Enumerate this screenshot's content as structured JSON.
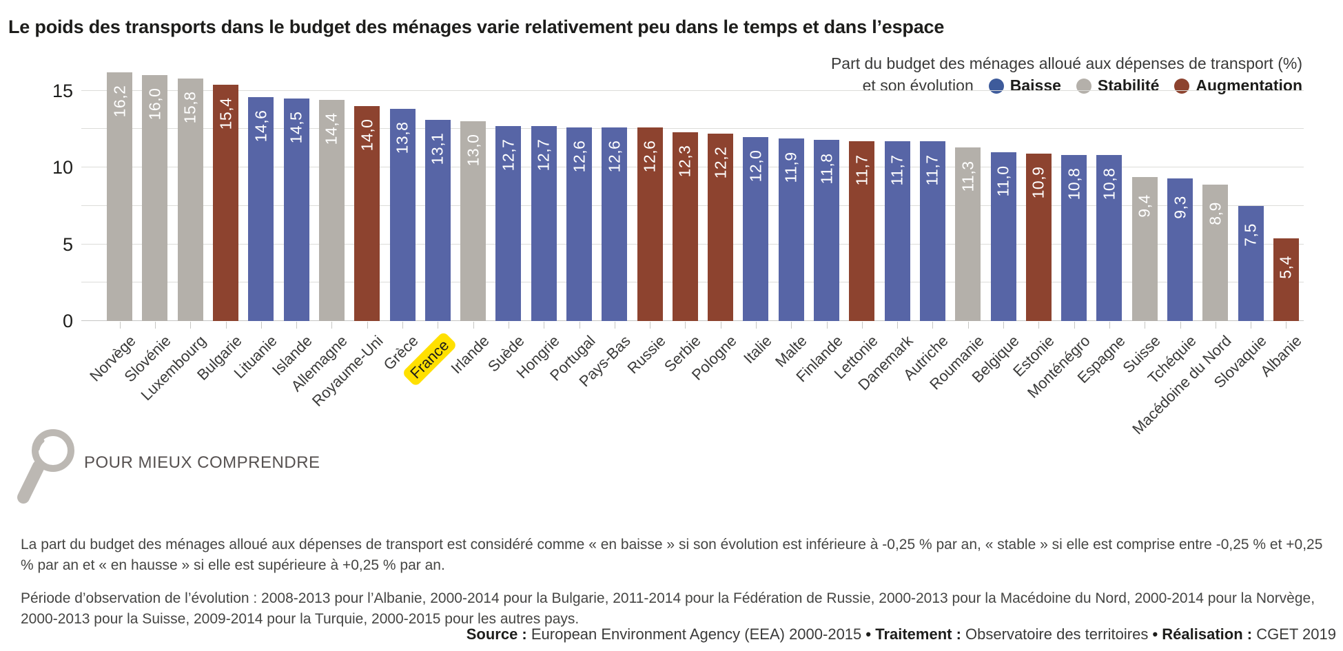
{
  "title": "Le poids des transports dans le budget des ménages varie relativement peu dans le temps et dans l’espace",
  "legend": {
    "caption_line1": "Part du budget des ménages alloué aux dépenses de transport (%)",
    "caption_line2": "et son évolution",
    "items": [
      {
        "key": "baisse",
        "label": "Baisse",
        "color": "#3e5b9b"
      },
      {
        "key": "stabilite",
        "label": "Stabilité",
        "color": "#b4b0aa"
      },
      {
        "key": "augmentation",
        "label": "Augmentation",
        "color": "#8d432f"
      }
    ]
  },
  "chart_data": {
    "type": "bar",
    "title": "Part du budget des ménages alloué aux dépenses de transport (%) et son évolution",
    "ylabel": "",
    "xlabel": "",
    "yticks": [
      0,
      5,
      10,
      15
    ],
    "ylim": [
      0,
      17.05
    ],
    "grid_step": 2.5,
    "grid": true,
    "legend_position": "top-right",
    "bar_colors": {
      "baisse": "#5765a6",
      "stabilite": "#b4b0aa",
      "augmentation": "#8d432f"
    },
    "highlight_color": "#ffe000",
    "categories": [
      "Norvège",
      "Slovénie",
      "Luxembourg",
      "Bulgarie",
      "Lituanie",
      "Islande",
      "Allemagne",
      "Royaume-Uni",
      "Grèce",
      "France",
      "Irlande",
      "Suède",
      "Hongrie",
      "Portugal",
      "Pays-Bas",
      "Russie",
      "Serbie",
      "Pologne",
      "Italie",
      "Malte",
      "Finlande",
      "Lettonie",
      "Danemark",
      "Autriche",
      "Roumanie",
      "Belgique",
      "Estonie",
      "Monténégro",
      "Espagne",
      "Suisse",
      "Tchéquie",
      "Macédoine du Nord",
      "Slovaquie",
      "Albanie"
    ],
    "values": [
      16.2,
      16.0,
      15.8,
      15.4,
      14.6,
      14.5,
      14.4,
      14.0,
      13.8,
      13.1,
      13.0,
      12.7,
      12.7,
      12.6,
      12.6,
      12.6,
      12.3,
      12.2,
      12.0,
      11.9,
      11.8,
      11.7,
      11.7,
      11.7,
      11.3,
      11.0,
      10.9,
      10.8,
      10.8,
      9.4,
      9.3,
      8.9,
      7.5,
      5.4
    ],
    "bars": [
      {
        "country": "Norvège",
        "value": 16.2,
        "label": "16,2",
        "trend": "stabilite",
        "highlight": false
      },
      {
        "country": "Slovénie",
        "value": 16.0,
        "label": "16,0",
        "trend": "stabilite",
        "highlight": false
      },
      {
        "country": "Luxembourg",
        "value": 15.8,
        "label": "15,8",
        "trend": "stabilite",
        "highlight": false
      },
      {
        "country": "Bulgarie",
        "value": 15.4,
        "label": "15,4",
        "trend": "augmentation",
        "highlight": false
      },
      {
        "country": "Lituanie",
        "value": 14.6,
        "label": "14,6",
        "trend": "baisse",
        "highlight": false
      },
      {
        "country": "Islande",
        "value": 14.5,
        "label": "14,5",
        "trend": "baisse",
        "highlight": false
      },
      {
        "country": "Allemagne",
        "value": 14.4,
        "label": "14,4",
        "trend": "stabilite",
        "highlight": false
      },
      {
        "country": "Royaume-Uni",
        "value": 14.0,
        "label": "14,0",
        "trend": "augmentation",
        "highlight": false
      },
      {
        "country": "Grèce",
        "value": 13.8,
        "label": "13,8",
        "trend": "baisse",
        "highlight": false
      },
      {
        "country": "France",
        "value": 13.1,
        "label": "13,1",
        "trend": "baisse",
        "highlight": true
      },
      {
        "country": "Irlande",
        "value": 13.0,
        "label": "13,0",
        "trend": "stabilite",
        "highlight": false
      },
      {
        "country": "Suède",
        "value": 12.7,
        "label": "12,7",
        "trend": "baisse",
        "highlight": false
      },
      {
        "country": "Hongrie",
        "value": 12.7,
        "label": "12,7",
        "trend": "baisse",
        "highlight": false
      },
      {
        "country": "Portugal",
        "value": 12.6,
        "label": "12,6",
        "trend": "baisse",
        "highlight": false
      },
      {
        "country": "Pays-Bas",
        "value": 12.6,
        "label": "12,6",
        "trend": "baisse",
        "highlight": false
      },
      {
        "country": "Russie",
        "value": 12.6,
        "label": "12,6",
        "trend": "augmentation",
        "highlight": false
      },
      {
        "country": "Serbie",
        "value": 12.3,
        "label": "12,3",
        "trend": "augmentation",
        "highlight": false
      },
      {
        "country": "Pologne",
        "value": 12.2,
        "label": "12,2",
        "trend": "augmentation",
        "highlight": false
      },
      {
        "country": "Italie",
        "value": 12.0,
        "label": "12,0",
        "trend": "baisse",
        "highlight": false
      },
      {
        "country": "Malte",
        "value": 11.9,
        "label": "11,9",
        "trend": "baisse",
        "highlight": false
      },
      {
        "country": "Finlande",
        "value": 11.8,
        "label": "11,8",
        "trend": "baisse",
        "highlight": false
      },
      {
        "country": "Lettonie",
        "value": 11.7,
        "label": "11,7",
        "trend": "augmentation",
        "highlight": false
      },
      {
        "country": "Danemark",
        "value": 11.7,
        "label": "11,7",
        "trend": "baisse",
        "highlight": false
      },
      {
        "country": "Autriche",
        "value": 11.7,
        "label": "11,7",
        "trend": "baisse",
        "highlight": false
      },
      {
        "country": "Roumanie",
        "value": 11.3,
        "label": "11,3",
        "trend": "stabilite",
        "highlight": false
      },
      {
        "country": "Belgique",
        "value": 11.0,
        "label": "11,0",
        "trend": "baisse",
        "highlight": false
      },
      {
        "country": "Estonie",
        "value": 10.9,
        "label": "10,9",
        "trend": "augmentation",
        "highlight": false
      },
      {
        "country": "Monténégro",
        "value": 10.8,
        "label": "10,8",
        "trend": "baisse",
        "highlight": false
      },
      {
        "country": "Espagne",
        "value": 10.8,
        "label": "10,8",
        "trend": "baisse",
        "highlight": false
      },
      {
        "country": "Suisse",
        "value": 9.4,
        "label": "9,4",
        "trend": "stabilite",
        "highlight": false
      },
      {
        "country": "Tchéquie",
        "value": 9.3,
        "label": "9,3",
        "trend": "baisse",
        "highlight": false
      },
      {
        "country": "Macédoine du Nord",
        "value": 8.9,
        "label": "8,9",
        "trend": "stabilite",
        "highlight": false
      },
      {
        "country": "Slovaquie",
        "value": 7.5,
        "label": "7,5",
        "trend": "baisse",
        "highlight": false
      },
      {
        "country": "Albanie",
        "value": 5.4,
        "label": "5,4",
        "trend": "augmentation",
        "highlight": false
      }
    ]
  },
  "explainer": {
    "heading": "POUR MIEUX COMPRENDRE",
    "paragraph1": "La part du budget des ménages alloué aux dépenses de transport est considéré comme « en baisse » si son évolution est inférieure à -0,25 % par an, « stable » si elle est comprise entre -0,25 % et +0,25 % par an et « en hausse » si elle est supérieure à +0,25 % par an.",
    "paragraph2": "Période d’observation de l’évolution : 2008-2013 pour l’Albanie, 2000-2014 pour la Bulgarie, 2011-2014 pour la Fédération de Russie, 2000-2013 pour la Macédoine du Nord, 2000-2014 pour la Norvège, 2000-2013 pour la Suisse, 2009-2014 pour la Turquie, 2000-2015 pour les autres pays."
  },
  "footer": {
    "source_label": "Source :",
    "source_text": " European Environment Agency (EEA) 2000-2015 ",
    "treatment_label": "Traitement :",
    "treatment_text": " Observatoire des territoires ",
    "realisation_label": "Réalisation :",
    "realisation_text": " CGET 2019",
    "separator": "• "
  }
}
